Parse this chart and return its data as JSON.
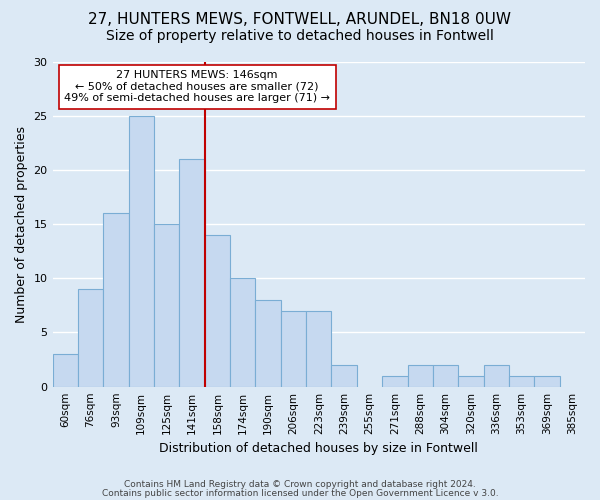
{
  "title": "27, HUNTERS MEWS, FONTWELL, ARUNDEL, BN18 0UW",
  "subtitle": "Size of property relative to detached houses in Fontwell",
  "xlabel": "Distribution of detached houses by size in Fontwell",
  "ylabel": "Number of detached properties",
  "bar_labels": [
    "60sqm",
    "76sqm",
    "93sqm",
    "109sqm",
    "125sqm",
    "141sqm",
    "158sqm",
    "174sqm",
    "190sqm",
    "206sqm",
    "223sqm",
    "239sqm",
    "255sqm",
    "271sqm",
    "288sqm",
    "304sqm",
    "320sqm",
    "336sqm",
    "353sqm",
    "369sqm",
    "385sqm"
  ],
  "bar_heights": [
    3,
    9,
    16,
    25,
    15,
    21,
    14,
    10,
    8,
    7,
    7,
    2,
    0,
    1,
    2,
    2,
    1,
    2,
    1,
    1,
    0
  ],
  "bar_color": "#c6d9f0",
  "bar_edge_color": "#7aadd4",
  "grid_color": "#ffffff",
  "background_color": "#dce9f5",
  "ref_line_color": "#c00000",
  "ref_line_index": 5,
  "annotation_title": "27 HUNTERS MEWS: 146sqm",
  "annotation_line1": "← 50% of detached houses are smaller (72)",
  "annotation_line2": "49% of semi-detached houses are larger (71) →",
  "annotation_box_color": "#ffffff",
  "annotation_box_edge": "#c00000",
  "footer1": "Contains HM Land Registry data © Crown copyright and database right 2024.",
  "footer2": "Contains public sector information licensed under the Open Government Licence v 3.0.",
  "ylim": [
    0,
    30
  ],
  "yticks": [
    0,
    5,
    10,
    15,
    20,
    25,
    30
  ],
  "title_fontsize": 11,
  "subtitle_fontsize": 10,
  "axis_fontsize": 9,
  "tick_fontsize": 8,
  "bar_tick_fontsize": 7.5
}
